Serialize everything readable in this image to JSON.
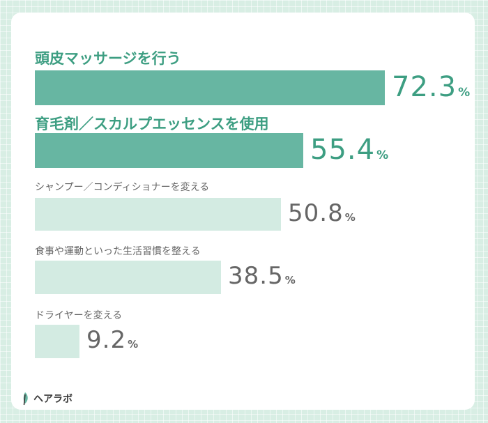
{
  "chart_data": {
    "type": "bar",
    "orientation": "horizontal",
    "categories": [
      "頭皮マッサージを行う",
      "育毛剤／スカルプエッセンスを使用",
      "シャンプー／コンディショナーを変える",
      "食事や運動といった生活習慣を整える",
      "ドライヤーを変える"
    ],
    "values": [
      72.3,
      55.4,
      50.8,
      38.5,
      9.2
    ],
    "value_labels": [
      "72.3",
      "55.4",
      "50.8",
      "38.5",
      "9.2"
    ],
    "unit": "%",
    "highlighted": [
      true,
      true,
      false,
      false,
      false
    ],
    "xlim": [
      0,
      72.3
    ],
    "colors": {
      "highlight_bar": "#67b6a2",
      "normal_bar": "#d3ebe2",
      "highlight_text": "#3d9e82",
      "normal_text": "#666666"
    }
  },
  "brand": {
    "name": "ヘアラボ",
    "icon": "leaf-icon"
  }
}
